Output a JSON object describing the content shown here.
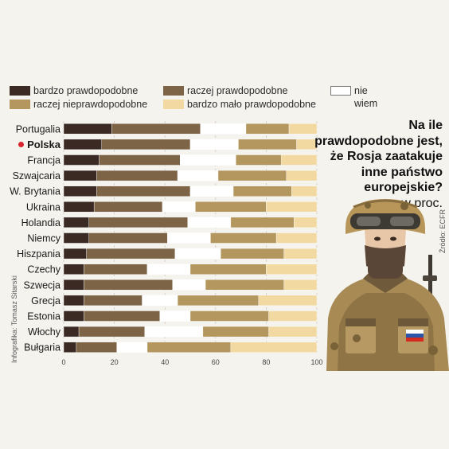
{
  "legend": [
    {
      "label": "bardzo prawdopodobne",
      "color": "#3b2a24"
    },
    {
      "label": "raczej prawdopodobne",
      "color": "#7d6446"
    },
    {
      "label": "raczej nieprawdopodobne",
      "color": "#b4975f"
    },
    {
      "label": "bardzo mało prawdopodobne",
      "color": "#f1d9a1"
    },
    {
      "label": "nie\nwiem",
      "color": "#ffffff"
    }
  ],
  "question": {
    "title": "Na ile\nprawdopodobne jest,\nże Rosja zaatakuje\ninne państwo\neuropejskie?",
    "unit": "w proc."
  },
  "credit": "Infografika: Tomasz Sitarski",
  "source": "Źródło: ECFR",
  "highlight": {
    "country": "Polska",
    "dot_color": "#d9262e"
  },
  "chart_data": {
    "type": "bar",
    "orientation": "horizontal",
    "stacked": true,
    "categories": [
      "Portugalia",
      "Polska",
      "Francja",
      "Szwajcaria",
      "W. Brytania",
      "Ukraina",
      "Holandia",
      "Niemcy",
      "Hiszpania",
      "Czechy",
      "Szwecja",
      "Grecja",
      "Estonia",
      "Włochy",
      "Bułgaria"
    ],
    "series": [
      {
        "name": "bardzo prawdopodobne",
        "values": [
          19,
          15,
          14,
          13,
          13,
          12,
          10,
          10,
          9,
          8,
          8,
          8,
          8,
          6,
          5
        ]
      },
      {
        "name": "raczej prawdopodobne",
        "values": [
          35,
          35,
          32,
          32,
          37,
          27,
          39,
          31,
          35,
          25,
          35,
          23,
          30,
          26,
          16
        ]
      },
      {
        "name": "nie\nwiem",
        "values": [
          18,
          19,
          22,
          16,
          17,
          13,
          17,
          17,
          18,
          17,
          13,
          14,
          12,
          23,
          12
        ]
      },
      {
        "name": "raczej nieprawdopodobne",
        "values": [
          17,
          23,
          18,
          27,
          23,
          28,
          25,
          26,
          25,
          30,
          31,
          32,
          31,
          26,
          33
        ]
      },
      {
        "name": "bardzo mało prawdopodobne",
        "values": [
          11,
          8,
          14,
          12,
          10,
          20,
          9,
          16,
          13,
          20,
          13,
          23,
          19,
          19,
          34
        ]
      }
    ],
    "x_ticks": [
      0,
      20,
      40,
      60,
      80,
      100
    ],
    "xlim": [
      0,
      100
    ],
    "grid": true
  }
}
